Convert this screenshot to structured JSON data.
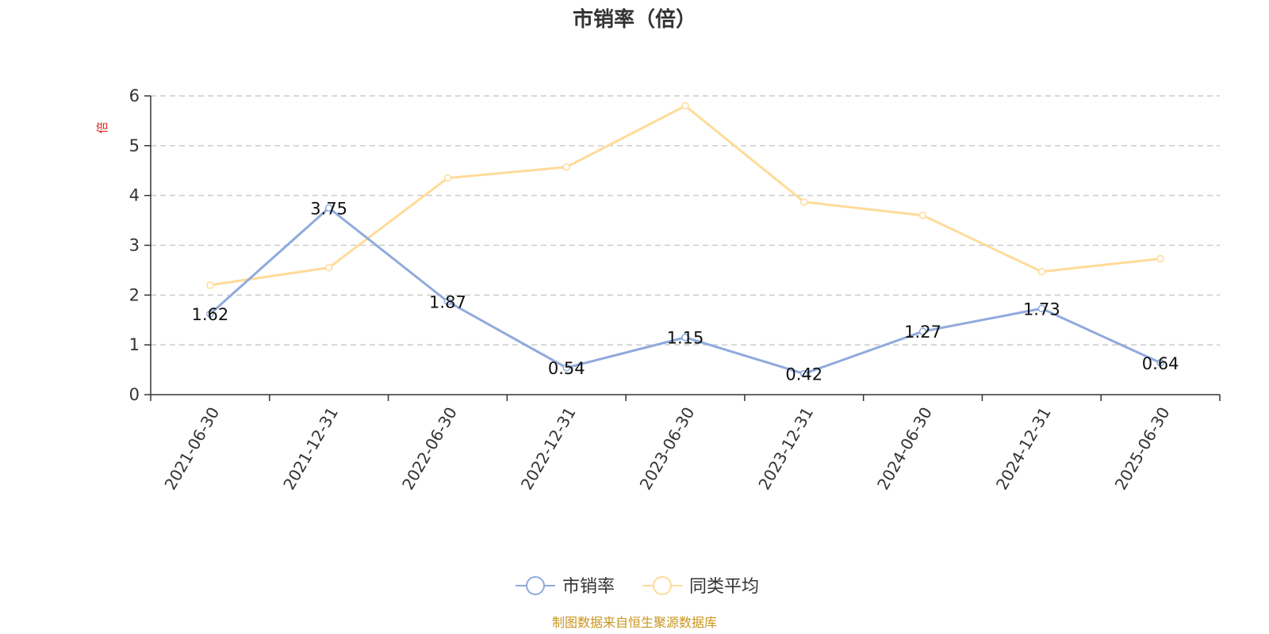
{
  "chart_data": {
    "type": "line",
    "title": "市销率（倍）",
    "ylabel": "倍",
    "ylim": [
      0,
      6
    ],
    "yticks": [
      0,
      1,
      2,
      3,
      4,
      5,
      6
    ],
    "grid": true,
    "legend_position": "bottom",
    "categories": [
      "2021-06-30",
      "2021-12-31",
      "2022-06-30",
      "2022-12-31",
      "2023-06-30",
      "2023-12-31",
      "2024-06-30",
      "2024-12-31",
      "2025-06-30"
    ],
    "series": [
      {
        "name": "市销率",
        "color": "#8faadc",
        "values": [
          1.62,
          3.75,
          1.87,
          0.54,
          1.15,
          0.42,
          1.27,
          1.73,
          0.64
        ],
        "show_labels": true
      },
      {
        "name": "同类平均",
        "color": "#ffdb99",
        "values": [
          2.2,
          2.55,
          4.35,
          4.57,
          5.8,
          3.87,
          3.6,
          2.47,
          2.73
        ],
        "show_labels": false
      }
    ],
    "source": "制图数据来自恒生聚源数据库",
    "ylabel_color": "#e02020",
    "source_color": "#c8961e"
  }
}
